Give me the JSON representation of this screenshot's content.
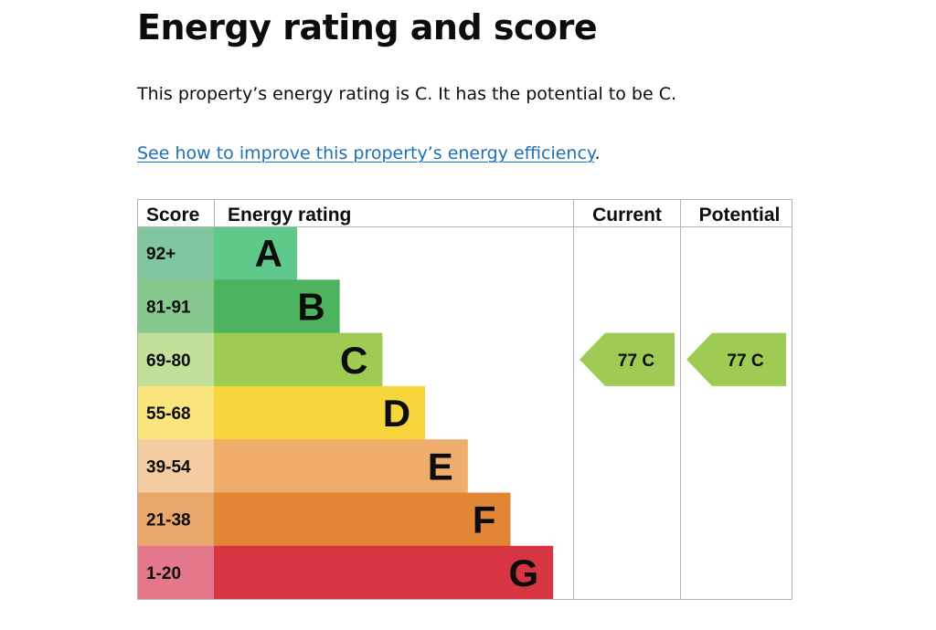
{
  "page": {
    "title": "Energy rating and score",
    "summary": "This property’s energy rating is C. It has the potential to be C.",
    "improve_link": "See how to improve this property’s energy efficiency",
    "improve_suffix": "."
  },
  "chart_data": {
    "type": "bar",
    "headers": {
      "score": "Score",
      "rating": "Energy rating",
      "current": "Current",
      "potential": "Potential"
    },
    "bands": [
      {
        "letter": "A",
        "range": "92+",
        "bar_color": "#5fc98a",
        "cell_color": "#7fc6a1"
      },
      {
        "letter": "B",
        "range": "81-91",
        "bar_color": "#4db35f",
        "cell_color": "#86c88d"
      },
      {
        "letter": "C",
        "range": "69-80",
        "bar_color": "#9dcb53",
        "cell_color": "#c3e09a"
      },
      {
        "letter": "D",
        "range": "55-68",
        "bar_color": "#f7d63c",
        "cell_color": "#fae57d"
      },
      {
        "letter": "E",
        "range": "39-54",
        "bar_color": "#f0ad6c",
        "cell_color": "#f5cba1"
      },
      {
        "letter": "F",
        "range": "21-38",
        "bar_color": "#e08634",
        "cell_color": "#e8a66a"
      },
      {
        "letter": "G",
        "range": "1-20",
        "bar_color": "#d73541",
        "cell_color": "#e3788a"
      }
    ],
    "current": {
      "score": 77,
      "letter": "C",
      "label": "77  C",
      "color": "#9dcb53"
    },
    "potential": {
      "score": 77,
      "letter": "C",
      "label": "77  C",
      "color": "#9dcb53"
    }
  }
}
